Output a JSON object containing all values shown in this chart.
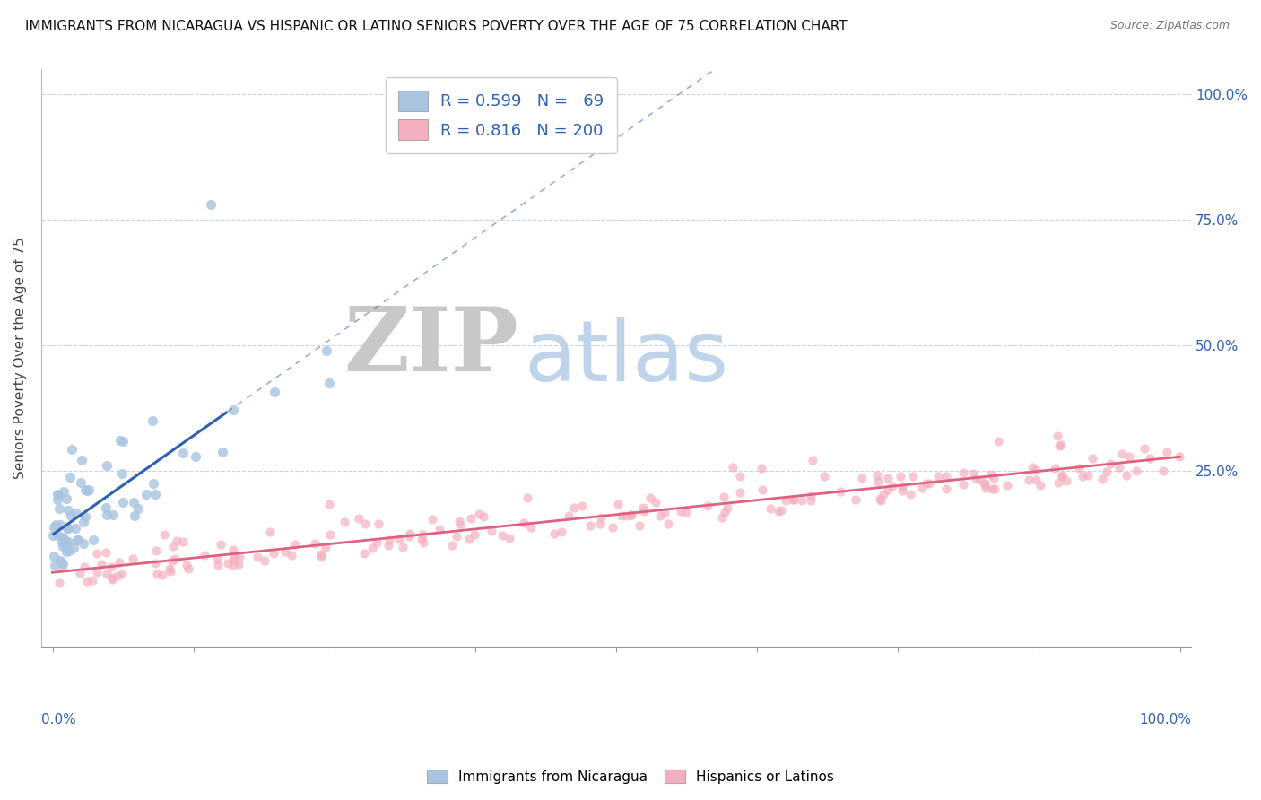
{
  "title": "IMMIGRANTS FROM NICARAGUA VS HISPANIC OR LATINO SENIORS POVERTY OVER THE AGE OF 75 CORRELATION CHART",
  "source": "Source: ZipAtlas.com",
  "ylabel": "Seniors Poverty Over the Age of 75",
  "blue_R": 0.599,
  "blue_N": 69,
  "pink_R": 0.816,
  "pink_N": 200,
  "blue_color": "#a8c4e0",
  "blue_line_color": "#3060b0",
  "pink_color": "#f4b0c0",
  "pink_line_color": "#e06080",
  "watermark_zip": "ZIP",
  "watermark_atlas": "atlas",
  "watermark_zip_color": "#c8c8c8",
  "watermark_atlas_color": "#b8d0e8",
  "legend_label_blue": "Immigrants from Nicaragua",
  "legend_label_pink": "Hispanics or Latinos",
  "background_color": "#ffffff",
  "grid_color": "#c8d4e8",
  "title_fontsize": 11,
  "seed": 7
}
